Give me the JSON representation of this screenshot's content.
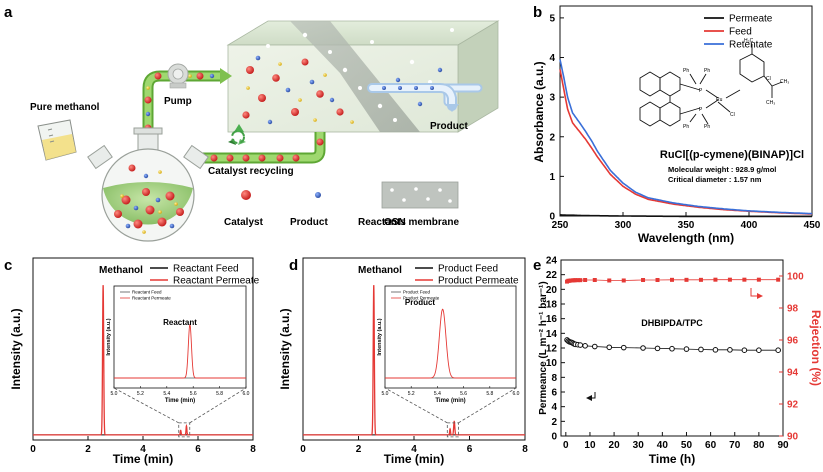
{
  "panels": {
    "a": {
      "label": "a",
      "labels": {
        "pure_methanol": "Pure methanol",
        "pump": "Pump",
        "product": "Product",
        "catalyst_recycling": "Catalyst recycling",
        "osn_membrane": "OSN membrane"
      },
      "legend": [
        {
          "name": "Catalyst",
          "color": "#d9262b"
        },
        {
          "name": "Product",
          "color": "#3a63b8"
        },
        {
          "name": "Reactants",
          "color": "#e8c02a"
        }
      ]
    },
    "b": {
      "label": "b",
      "compound_name": "RuCl[(p-cymene)(BINAP)]Cl",
      "molecular_weight": "Molecular weight : 928.9 g/mol",
      "critical_diameter": "Critical diameter : 1.57 nm",
      "atom_labels": [
        "Ph",
        "Ph",
        "P",
        "Ru",
        "Cl",
        "P",
        "Ph",
        "Ph",
        "Cl",
        "H₃C",
        "CH₃",
        "CH₃"
      ]
    },
    "c": {
      "label": "c",
      "peak_methanol": "Methanol",
      "inset_peak": "Reactant"
    },
    "d": {
      "label": "d",
      "peak_methanol": "Methanol",
      "inset_peak": "Product"
    },
    "e": {
      "label": "e",
      "annotation": "DHBIPDA/TPC"
    }
  },
  "chart_data": [
    {
      "id": "b",
      "type": "line",
      "xlabel": "Wavelength (nm)",
      "ylabel": "Absorbance (a.u.)",
      "xlim": [
        250,
        450
      ],
      "ylim": [
        0,
        5.3
      ],
      "xticks": [
        250,
        300,
        350,
        400,
        450
      ],
      "yticks": [
        0,
        1,
        2,
        3,
        4,
        5
      ],
      "legend_position": "top-right",
      "series": [
        {
          "name": "Permeate",
          "color": "#111111",
          "x": [
            250,
            255,
            260,
            270,
            300,
            350,
            400,
            450
          ],
          "y": [
            0.03,
            0.02,
            0.02,
            0.01,
            0.0,
            -0.01,
            -0.01,
            -0.01
          ]
        },
        {
          "name": "Feed",
          "color": "#e53935",
          "x": [
            250,
            253,
            256,
            260,
            265,
            270,
            275,
            280,
            290,
            300,
            310,
            320,
            340,
            360,
            380,
            400,
            425,
            450
          ],
          "y": [
            3.7,
            3.2,
            2.7,
            2.35,
            2.15,
            1.95,
            1.72,
            1.48,
            1.05,
            0.75,
            0.55,
            0.42,
            0.3,
            0.22,
            0.16,
            0.12,
            0.08,
            0.05
          ]
        },
        {
          "name": "Retentate",
          "color": "#3a6fd8",
          "x": [
            250,
            253,
            256,
            260,
            265,
            270,
            275,
            280,
            290,
            300,
            310,
            320,
            340,
            360,
            380,
            400,
            425,
            450
          ],
          "y": [
            3.95,
            3.5,
            3.0,
            2.6,
            2.38,
            2.15,
            1.9,
            1.62,
            1.15,
            0.83,
            0.6,
            0.46,
            0.33,
            0.24,
            0.18,
            0.13,
            0.09,
            0.06
          ]
        }
      ]
    },
    {
      "id": "c",
      "type": "line",
      "xlabel": "Time (min)",
      "ylabel": "Intensity (a.u.)",
      "xlim": [
        0,
        8
      ],
      "ylim": [
        0,
        1.06
      ],
      "xticks": [
        0,
        2,
        4,
        6,
        8
      ],
      "legend_position": "top-right",
      "series": [
        {
          "name": "Reactant Feed",
          "color": "#111111"
        },
        {
          "name": "Reactant Permeate",
          "color": "#e53935",
          "peaks": [
            {
              "center": 2.55,
              "height": 1.0,
              "width": 0.02
            },
            {
              "center": 5.37,
              "height": 0.03,
              "width": 0.015
            },
            {
              "center": 5.58,
              "height": 0.06,
              "width": 0.015
            }
          ]
        }
      ],
      "inset": {
        "type": "line",
        "xlabel": "Time (min)",
        "ylabel": "Intensity (a.u.)",
        "xlim": [
          5.0,
          6.0
        ],
        "xticks": [
          "5.0",
          "5.2",
          "5.4",
          "5.6",
          "5.8",
          "6.0"
        ],
        "zoom_range": [
          5.3,
          5.7
        ],
        "legend": [
          {
            "name": "Reactant Feed",
            "color": "#555555"
          },
          {
            "name": "Reactant Permeate",
            "color": "#e53935"
          }
        ],
        "peak_center": 5.575,
        "peak_height": 0.62,
        "peak_width": 0.012
      }
    },
    {
      "id": "d",
      "type": "line",
      "xlabel": "Time (min)",
      "ylabel": "Intensity (a.u.)",
      "xlim": [
        0,
        8
      ],
      "ylim": [
        0,
        1.06
      ],
      "xticks": [
        0,
        2,
        4,
        6,
        8
      ],
      "legend_position": "top-right",
      "series": [
        {
          "name": "Product Feed",
          "color": "#111111"
        },
        {
          "name": "Product Permeate",
          "color": "#e53935",
          "peaks": [
            {
              "center": 2.55,
              "height": 1.0,
              "width": 0.02
            },
            {
              "center": 5.3,
              "height": 0.04,
              "width": 0.015
            },
            {
              "center": 5.45,
              "height": 0.09,
              "width": 0.02
            }
          ]
        }
      ],
      "inset": {
        "type": "line",
        "xlabel": "Time (min)",
        "ylabel": "Intensity (a.u.)",
        "xlim": [
          5.0,
          6.0
        ],
        "xticks": [
          "5.0",
          "5.2",
          "5.4",
          "5.6",
          "5.8",
          "6.0"
        ],
        "zoom_range": [
          5.2,
          5.6
        ],
        "legend": [
          {
            "name": "Product Feed",
            "color": "#555555"
          },
          {
            "name": "Product Permeate",
            "color": "#e53935"
          }
        ],
        "peak_center": 5.44,
        "peak_height": 0.8,
        "peak_width": 0.025
      }
    },
    {
      "id": "e",
      "type": "scatter",
      "xlabel": "Time (h)",
      "ylabel": "Permeance (L m⁻² h⁻¹ bar⁻¹)",
      "y2label": "Rejection (%)",
      "xlim": [
        -2,
        90
      ],
      "ylim": [
        0,
        24
      ],
      "y2lim": [
        90,
        101
      ],
      "xticks": [
        0,
        10,
        20,
        30,
        40,
        50,
        60,
        70,
        80,
        90
      ],
      "yticks": [
        0,
        2,
        4,
        6,
        8,
        10,
        12,
        14,
        16,
        18,
        20,
        22,
        24
      ],
      "y2ticks": [
        90,
        92,
        94,
        96,
        98,
        100
      ],
      "series": [
        {
          "name": "Permeance",
          "color": "#111111",
          "axis": "left",
          "x": [
            0.5,
            1,
            1.5,
            2,
            2.5,
            3,
            3.5,
            4,
            5,
            6,
            8,
            12,
            18,
            24,
            32,
            38,
            44,
            50,
            56,
            62,
            68,
            74,
            80,
            88
          ],
          "y": [
            13.1,
            12.95,
            12.85,
            12.8,
            12.75,
            12.65,
            12.55,
            12.5,
            12.45,
            12.4,
            12.3,
            12.2,
            12.1,
            12.05,
            12.0,
            11.95,
            11.9,
            11.85,
            11.8,
            11.75,
            11.75,
            11.7,
            11.7,
            11.7
          ],
          "err": 0.35
        },
        {
          "name": "Rejection",
          "color": "#e53935",
          "axis": "right",
          "x": [
            0.5,
            1,
            1.5,
            2,
            2.5,
            3,
            3.5,
            4,
            5,
            6,
            8,
            12,
            18,
            24,
            32,
            38,
            44,
            50,
            56,
            62,
            68,
            74,
            80,
            88
          ],
          "y": [
            99.65,
            99.7,
            99.7,
            99.72,
            99.72,
            99.73,
            99.73,
            99.74,
            99.74,
            99.74,
            99.75,
            99.75,
            99.72,
            99.72,
            99.75,
            99.75,
            99.76,
            99.76,
            99.76,
            99.77,
            99.77,
            99.77,
            99.77,
            99.77
          ]
        }
      ]
    }
  ]
}
